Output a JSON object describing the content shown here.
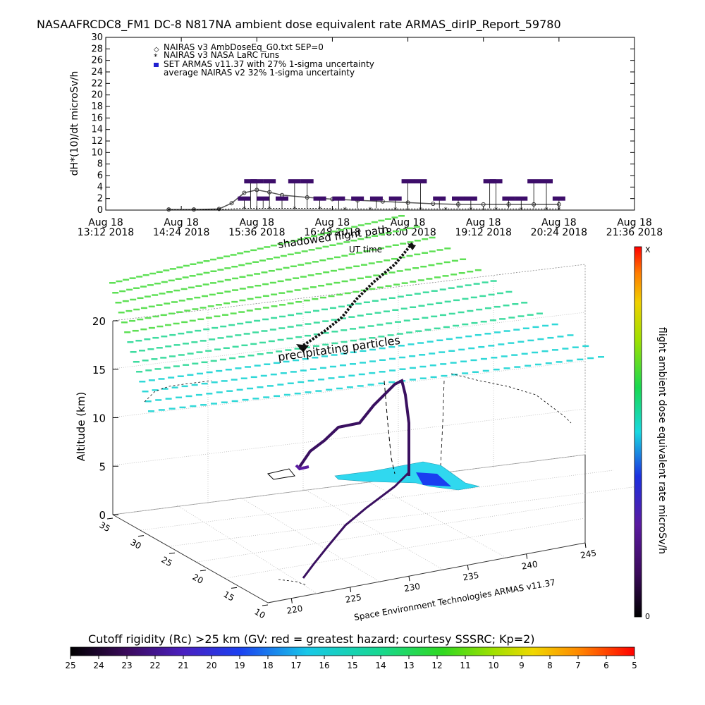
{
  "header": {
    "title": "NASAAFRCDC8_FM1 DC-8   N817NA ambient dose equivalent rate ARMAS_dirIP_Report_59780"
  },
  "chart_data": [
    {
      "type": "scatter",
      "ylabel": "dH*(10)/dt microSv/h",
      "ylim": [
        0,
        30
      ],
      "yticks": [
        "0",
        "2",
        "4",
        "6",
        "8",
        "10",
        "12",
        "14",
        "16",
        "18",
        "20",
        "22",
        "24",
        "26",
        "28",
        "30"
      ],
      "xticks": [
        {
          "d": "Aug 18",
          "t": "13:12 2018",
          "h": 13.2
        },
        {
          "d": "Aug 18",
          "t": "14:24 2018",
          "h": 14.4
        },
        {
          "d": "Aug 18",
          "t": "15:36 2018",
          "h": 15.6
        },
        {
          "d": "Aug 18",
          "t": "16:48 2018",
          "h": 16.8
        },
        {
          "d": "Aug 18",
          "t": "18:00 2018",
          "h": 18.0
        },
        {
          "d": "Aug 18",
          "t": "19:12 2018",
          "h": 19.2
        },
        {
          "d": "Aug 18",
          "t": "20:24 2018",
          "h": 20.4
        },
        {
          "d": "Aug 18",
          "t": "21:36 2018",
          "h": 21.6
        }
      ],
      "xlim_hours": [
        13.2,
        21.6
      ],
      "legend": [
        "NAIRAS v3 AmbDoseEq_G0.txt SEP=0",
        "NAIRAS v3 NASA LaRC runs",
        "SET ARMAS v11.37 with 27% 1-sigma uncertainty",
        "average NAIRAS v2 32% 1-sigma uncertainty"
      ],
      "legend_placement": "top-left",
      "series": [
        {
          "name": "NAIRAS v3 AmbDoseEq_G0.txt SEP=0",
          "x": [
            14.2,
            14.6,
            15.0,
            15.2,
            15.4,
            15.6,
            15.8,
            16.0,
            16.4,
            16.8,
            17.2,
            17.6,
            18.0,
            18.4,
            18.8,
            19.2,
            19.6,
            20.0,
            20.4
          ],
          "y": [
            0.1,
            0.1,
            0.2,
            1.2,
            3.0,
            3.5,
            3.1,
            2.6,
            2.2,
            1.9,
            1.7,
            1.5,
            1.3,
            1.1,
            1.0,
            1.0,
            1.0,
            1.0,
            1.0
          ]
        },
        {
          "name": "NAIRAS v3 NASA LaRC runs",
          "x": [
            14.2,
            14.6,
            15.0,
            15.4,
            15.8,
            16.2,
            16.6,
            17.0,
            17.4,
            17.8,
            18.2,
            18.6,
            19.0,
            19.4,
            19.8,
            20.2,
            20.4
          ],
          "y": [
            0.05,
            0.05,
            0.1,
            0.3,
            0.3,
            0.3,
            0.3,
            0.2,
            0.2,
            0.2,
            0.2,
            0.2,
            0.2,
            0.2,
            0.2,
            0.2,
            0.2
          ]
        },
        {
          "name": "SET ARMAS v11.37 with 27% 1-sigma uncertainty",
          "x": [
            15.4,
            15.5,
            15.6,
            15.7,
            15.8,
            16.0,
            16.2,
            16.4,
            16.6,
            16.9,
            17.2,
            17.5,
            17.8,
            18.0,
            18.2,
            18.5,
            18.8,
            19.0,
            19.3,
            19.4,
            19.6,
            19.8,
            20.0,
            20.2,
            20.4
          ],
          "y": [
            2,
            5,
            5,
            2,
            5,
            2,
            5,
            5,
            2,
            2,
            2,
            2,
            2,
            5,
            5,
            2,
            2,
            2,
            5,
            5,
            2,
            2,
            5,
            5,
            2
          ]
        }
      ]
    },
    {
      "type": "scatter",
      "zlabel": "Altitude (km)",
      "zticks": [
        "0",
        "5",
        "10",
        "15",
        "20"
      ],
      "lat_ticks": [
        "10",
        "15",
        "20",
        "25",
        "30",
        "35"
      ],
      "lon_ticks": [
        "220",
        "225",
        "230",
        "235",
        "240",
        "245"
      ],
      "annotations": [
        "shadowed flight path",
        "UT time",
        "precipitating particles"
      ],
      "credit": "Space Environment Technologies ARMAS v11.37",
      "right_colorbar": {
        "label": "flight ambient dose equivalent rate microSv/h",
        "max_label": "X",
        "min_label": "0"
      },
      "bottom_colorbar": {
        "title": "Cutoff rigidity (Rc) >25 km (GV: red = greatest hazard; courtesy SSSRC; Kp=2)",
        "ticks": [
          "25",
          "24",
          "23",
          "22",
          "21",
          "20",
          "19",
          "18",
          "17",
          "16",
          "15",
          "14",
          "13",
          "12",
          "11",
          "10",
          "9",
          "8",
          "7",
          "6",
          "5"
        ]
      }
    }
  ]
}
